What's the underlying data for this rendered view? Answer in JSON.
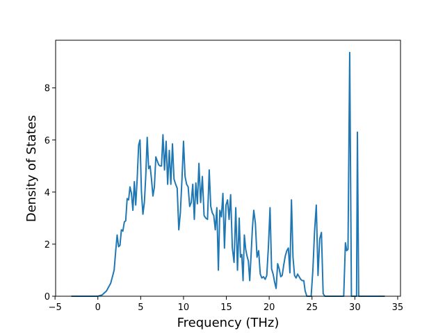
{
  "chart_data": {
    "type": "line",
    "xlabel": "Frequency (THz)",
    "ylabel": "Density of States",
    "color": "#1f77b4",
    "xlim": [
      -4.93,
      35.33
    ],
    "ylim": [
      0,
      9.83
    ],
    "xticks": [
      {
        "value": -5,
        "label": "−5"
      },
      0,
      5,
      10,
      15,
      20,
      25,
      30,
      35
    ],
    "yticks": [
      0,
      2,
      4,
      6,
      8
    ],
    "grid": false,
    "x": [
      -3.1,
      0,
      0.5,
      1,
      1.5,
      1.9,
      2.1,
      2.25,
      2.42,
      2.58,
      2.75,
      2.92,
      3.09,
      3.25,
      3.42,
      3.59,
      3.75,
      3.92,
      4.09,
      4.26,
      4.42,
      4.59,
      4.76,
      4.92,
      5.09,
      5.26,
      5.43,
      5.59,
      5.76,
      5.93,
      6.1,
      6.26,
      6.43,
      6.6,
      6.77,
      6.93,
      7.1,
      7.27,
      7.43,
      7.6,
      7.78,
      7.97,
      8.15,
      8.34,
      8.52,
      8.71,
      8.89,
      9.08,
      9.26,
      9.45,
      9.63,
      9.82,
      10.0,
      10.18,
      10.36,
      10.54,
      10.72,
      10.9,
      11.08,
      11.26,
      11.44,
      11.62,
      11.8,
      12.0,
      12.2,
      12.4,
      12.6,
      12.8,
      13.0,
      13.18,
      13.36,
      13.53,
      13.71,
      13.89,
      14.07,
      14.24,
      14.42,
      14.6,
      14.78,
      14.96,
      15.14,
      15.32,
      15.5,
      15.7,
      15.9,
      16.1,
      16.3,
      16.5,
      16.65,
      16.8,
      16.95,
      17.1,
      17.26,
      17.41,
      17.57,
      17.73,
      17.89,
      18.04,
      18.2,
      18.39,
      18.58,
      18.77,
      18.96,
      19.15,
      19.34,
      19.53,
      19.72,
      19.91,
      20.1,
      20.28,
      20.46,
      20.63,
      20.81,
      20.99,
      21.17,
      21.35,
      21.52,
      21.7,
      21.88,
      22.06,
      22.24,
      22.42,
      22.6,
      22.78,
      22.96,
      23.14,
      23.32,
      23.5,
      23.68,
      23.86,
      24.04,
      24.2,
      24.4,
      24.9,
      25.1,
      25.3,
      25.5,
      25.7,
      25.9,
      26.1,
      26.3,
      26.5,
      28.7,
      28.9,
      29.05,
      29.2,
      29.4,
      29.6,
      30.2,
      30.3,
      30.45,
      33.5
    ],
    "values": [
      0,
      0,
      0.05,
      0.2,
      0.5,
      1.0,
      1.8,
      2.35,
      1.9,
      1.95,
      2.55,
      2.5,
      2.85,
      2.9,
      3.75,
      3.7,
      4.2,
      3.95,
      3.3,
      4.4,
      3.5,
      4.5,
      5.8,
      6.0,
      4.0,
      3.15,
      3.6,
      4.6,
      6.1,
      4.9,
      5.0,
      4.5,
      3.85,
      4.2,
      5.35,
      5.2,
      5.05,
      5.0,
      5.0,
      6.2,
      4.85,
      5.95,
      4.3,
      5.6,
      4.3,
      5.85,
      4.5,
      4.3,
      4.15,
      2.55,
      3.2,
      4.5,
      5.95,
      4.6,
      4.3,
      4.2,
      3.45,
      3.6,
      4.3,
      2.95,
      4.35,
      3.55,
      5.1,
      3.6,
      4.6,
      3.1,
      3.0,
      2.95,
      4.85,
      3.45,
      3.2,
      3.1,
      2.55,
      3.4,
      1.0,
      3.3,
      3.05,
      3.95,
      1.85,
      3.5,
      3.7,
      2.95,
      3.9,
      1.85,
      1.3,
      3.4,
      1.0,
      3.0,
      1.5,
      1.6,
      0.6,
      2.35,
      1.8,
      1.55,
      1.35,
      0.6,
      1.6,
      2.6,
      3.3,
      2.8,
      1.5,
      1.75,
      0.85,
      0.7,
      0.75,
      0.65,
      0.8,
      1.9,
      3.4,
      1.05,
      0.85,
      0.55,
      0.3,
      1.25,
      1.05,
      0.75,
      0.8,
      1.2,
      1.55,
      1.75,
      1.85,
      0.9,
      3.7,
      1.5,
      0.8,
      0.7,
      0.85,
      0.75,
      0.65,
      0.6,
      0.6,
      0.2,
      0,
      0,
      1.0,
      2.5,
      3.5,
      0.8,
      2.2,
      2.45,
      0.1,
      0,
      0,
      2.05,
      1.75,
      1.8,
      9.36,
      0,
      0,
      6.3,
      0,
      0
    ]
  }
}
